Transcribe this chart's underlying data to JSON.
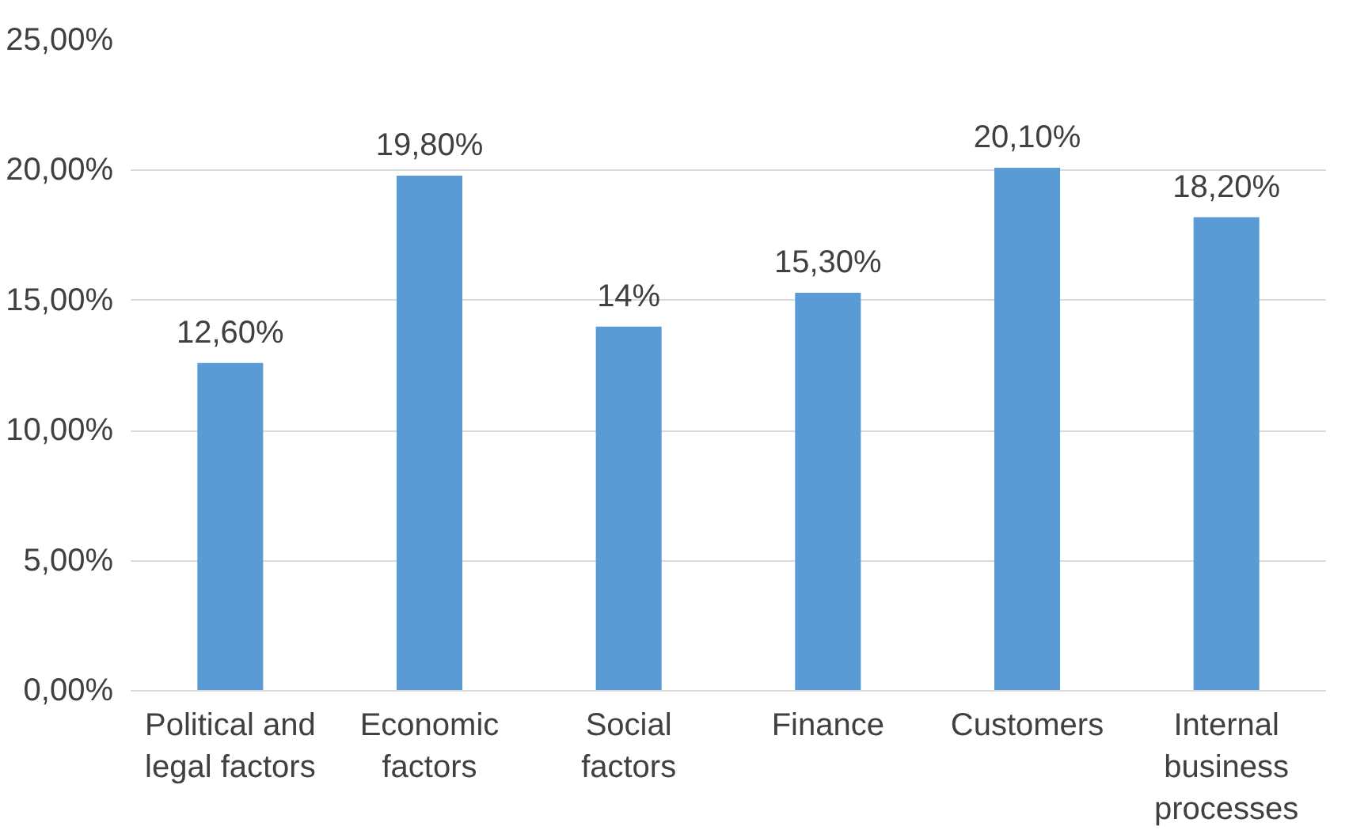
{
  "chart_data": {
    "type": "bar",
    "categories": [
      "Political and legal factors",
      "Economic factors",
      "Social factors",
      "Finance",
      "Customers",
      "Internal business processes"
    ],
    "values": [
      12.6,
      19.8,
      14,
      15.3,
      20.1,
      18.2
    ],
    "value_labels": [
      "12,60%",
      "19,80%",
      "14%",
      "15,30%",
      "20,10%",
      "18,20%"
    ],
    "color": "#5b9bd5",
    "ylim": [
      0,
      25
    ],
    "yticks": [
      {
        "value": 0,
        "label": "0,00%"
      },
      {
        "value": 5,
        "label": "5,00%"
      },
      {
        "value": 10,
        "label": "10,00%"
      },
      {
        "value": 15,
        "label": "15,00%"
      },
      {
        "value": 20,
        "label": "20,00%"
      },
      {
        "value": 25,
        "label": "25,00%"
      }
    ],
    "grid": "y"
  }
}
